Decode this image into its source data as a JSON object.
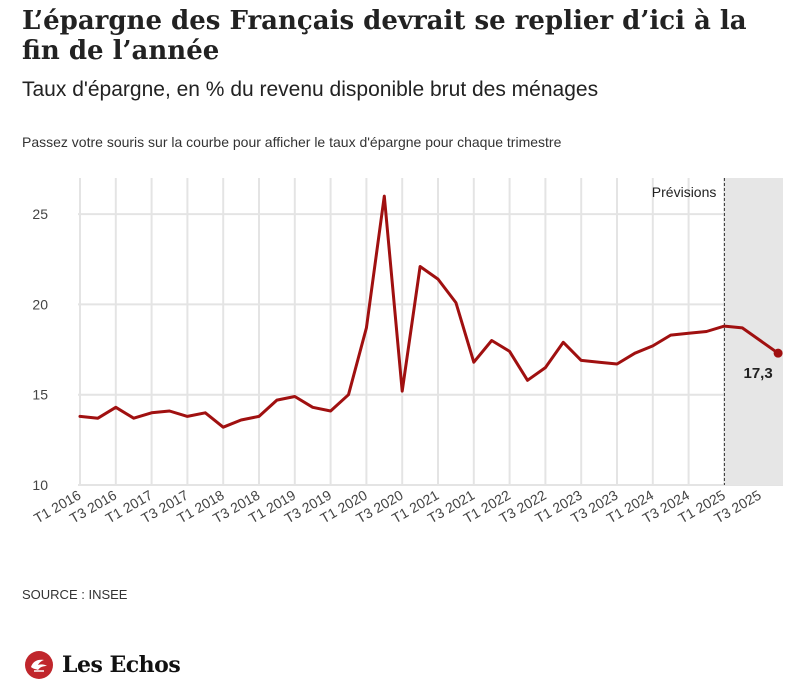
{
  "header": {
    "title": "L’épargne des Français devrait se replier d’ici à la fin de l’année",
    "subtitle": "Taux d'épargne, en % du revenu disponible brut des ménages",
    "instruction": "Passez votre souris sur la courbe pour afficher le taux d'épargne pour chaque trimestre"
  },
  "footer": {
    "source": "SOURCE : INSEE",
    "brand": "Les Echos"
  },
  "colors": {
    "line": "#a01010",
    "forecast_band": "#e6e6e6",
    "grid": "#e4e4e4"
  },
  "chart_data": {
    "type": "line",
    "title": "L’épargne des Français devrait se replier d’ici à la fin de l’année",
    "subtitle": "Taux d'épargne, en % du revenu disponible brut des ménages",
    "xlabel": "",
    "ylabel": "",
    "ylim": [
      10,
      27
    ],
    "yticks": [
      10,
      15,
      20,
      25
    ],
    "grid": true,
    "legend": "none",
    "tick_labels": [
      "T1 2016",
      "T3 2016",
      "T1 2017",
      "T3 2017",
      "T1 2018",
      "T3 2018",
      "T1 2019",
      "T3 2019",
      "T1 2020",
      "T3 2020",
      "T1 2021",
      "T3 2021",
      "T1 2022",
      "T3 2022",
      "T1 2023",
      "T3 2023",
      "T1 2024",
      "T3 2024",
      "T1 2025",
      "T3 2025"
    ],
    "forecast_label": "Prévisions",
    "forecast_start": "T1 2025",
    "last_value_label": "17,3",
    "x": [
      "T1 2016",
      "T2 2016",
      "T3 2016",
      "T4 2016",
      "T1 2017",
      "T2 2017",
      "T3 2017",
      "T4 2017",
      "T1 2018",
      "T2 2018",
      "T3 2018",
      "T4 2018",
      "T1 2019",
      "T2 2019",
      "T3 2019",
      "T4 2019",
      "T1 2020",
      "T2 2020",
      "T3 2020",
      "T4 2020",
      "T1 2021",
      "T2 2021",
      "T3 2021",
      "T4 2021",
      "T1 2022",
      "T2 2022",
      "T3 2022",
      "T4 2022",
      "T1 2023",
      "T2 2023",
      "T3 2023",
      "T4 2023",
      "T1 2024",
      "T2 2024",
      "T3 2024",
      "T4 2024",
      "T1 2025",
      "T2 2025",
      "T3 2025",
      "T4 2025"
    ],
    "series": [
      {
        "values": [
          13.8,
          13.7,
          14.3,
          13.7,
          14.0,
          14.1,
          13.8,
          14.0,
          13.2,
          13.6,
          13.8,
          14.7,
          14.9,
          14.3,
          14.1,
          15.0,
          18.7,
          26.0,
          15.2,
          22.1,
          21.4,
          20.1,
          16.8,
          18.0,
          17.4,
          15.8,
          16.5,
          17.9,
          16.9,
          16.8,
          16.7,
          17.3,
          17.7,
          18.3,
          18.4,
          18.5,
          18.8,
          18.7,
          18.0,
          17.3
        ]
      }
    ]
  }
}
